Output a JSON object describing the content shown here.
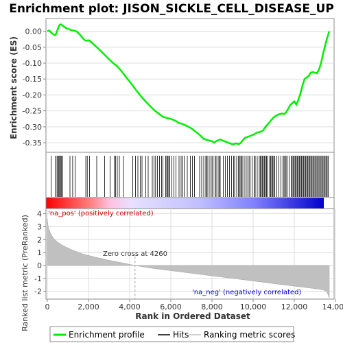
{
  "chart_data": [
    {
      "type": "line",
      "title": "Enrichment plot: JISON_SICKLE_CELL_DISEASE_UP",
      "ylabel": "Enrichment score (ES)",
      "ylim": [
        -0.38,
        0.04
      ],
      "yticks": [
        0.0,
        -0.05,
        -0.1,
        -0.15,
        -0.2,
        -0.25,
        -0.3,
        -0.35
      ],
      "ytick_labels": [
        "0.00",
        "-0.05",
        "-0.10",
        "-0.15",
        "-0.20",
        "-0.25",
        "-0.30",
        "-0.35"
      ],
      "xlim": [
        0,
        13700
      ],
      "grid": true,
      "color": "#00ee00",
      "series": [
        {
          "name": "Enrichment profile",
          "x": [
            0,
            100,
            200,
            300,
            400,
            500,
            550,
            600,
            650,
            700,
            800,
            900,
            1000,
            1100,
            1200,
            1300,
            1400,
            1500,
            1600,
            1700,
            1800,
            1900,
            2000,
            2100,
            2200,
            2400,
            2600,
            2800,
            3000,
            3200,
            3400,
            3600,
            3800,
            4000,
            4200,
            4400,
            4600,
            4800,
            5000,
            5200,
            5400,
            5600,
            5800,
            6000,
            6200,
            6400,
            6600,
            6800,
            7000,
            7200,
            7400,
            7600,
            7800,
            8000,
            8100,
            8200,
            8400,
            8600,
            8800,
            9000,
            9200,
            9300,
            9400,
            9500,
            9600,
            9800,
            10000,
            10200,
            10400,
            10500,
            10600,
            10800,
            11000,
            11200,
            11400,
            11500,
            11600,
            11800,
            12000,
            12100,
            12200,
            12300,
            12400,
            12500,
            12600,
            12700,
            12800,
            12900,
            13000,
            13100,
            13200,
            13300,
            13400,
            13500,
            13600,
            13700
          ],
          "y": [
            0.0,
            0.002,
            -0.005,
            -0.01,
            -0.012,
            0.005,
            0.015,
            0.02,
            0.022,
            0.02,
            0.015,
            0.01,
            0.008,
            0.005,
            0.003,
            0.002,
            0.0,
            -0.005,
            -0.012,
            -0.02,
            -0.027,
            -0.03,
            -0.028,
            -0.032,
            -0.038,
            -0.05,
            -0.062,
            -0.075,
            -0.088,
            -0.1,
            -0.11,
            -0.125,
            -0.142,
            -0.158,
            -0.175,
            -0.192,
            -0.208,
            -0.222,
            -0.235,
            -0.248,
            -0.258,
            -0.268,
            -0.272,
            -0.275,
            -0.28,
            -0.288,
            -0.292,
            -0.298,
            -0.305,
            -0.315,
            -0.325,
            -0.338,
            -0.342,
            -0.345,
            -0.35,
            -0.345,
            -0.34,
            -0.345,
            -0.35,
            -0.355,
            -0.352,
            -0.355,
            -0.35,
            -0.342,
            -0.335,
            -0.33,
            -0.325,
            -0.318,
            -0.315,
            -0.31,
            -0.3,
            -0.285,
            -0.27,
            -0.262,
            -0.258,
            -0.26,
            -0.255,
            -0.232,
            -0.22,
            -0.23,
            -0.215,
            -0.195,
            -0.17,
            -0.15,
            -0.145,
            -0.14,
            -0.13,
            -0.128,
            -0.13,
            -0.132,
            -0.12,
            -0.1,
            -0.07,
            -0.045,
            -0.02,
            0.0
          ]
        }
      ]
    },
    {
      "type": "hits",
      "label": "Hits",
      "hits": [
        180,
        380,
        470,
        520,
        560,
        600,
        640,
        690,
        740,
        1100,
        1230,
        1350,
        1870,
        1940,
        2050,
        2400,
        2780,
        3050,
        3250,
        3320,
        3400,
        3500,
        3700,
        4150,
        4280,
        4400,
        4520,
        4600,
        4780,
        4900,
        5100,
        5180,
        5260,
        5350,
        5450,
        5550,
        5620,
        5750,
        5800,
        5850,
        5900,
        5950,
        6050,
        6150,
        6250,
        6400,
        6500,
        6580,
        6650,
        6800,
        6950,
        7050,
        7150,
        7400,
        7500,
        7600,
        7700,
        7750,
        7800,
        7900,
        8000,
        8050,
        8150,
        8200,
        8300,
        8350,
        8400,
        8550,
        8650,
        8750,
        8850,
        8950,
        9050,
        9100,
        9200,
        9280,
        9350,
        9400,
        9450,
        9500,
        9600,
        9700,
        9800,
        9850,
        9950,
        10050,
        10100,
        10200,
        10300,
        10350,
        10400,
        10450,
        10500,
        10550,
        10600,
        10650,
        10700,
        10800,
        10850,
        10900,
        10950,
        11000,
        11050,
        11150,
        11250,
        11350,
        11450,
        11500,
        11550,
        11600,
        11650,
        11750,
        11850,
        11900,
        11950,
        12000,
        12050,
        12100,
        12150,
        12200,
        12250,
        12300,
        12350,
        12400,
        12450,
        12500,
        12550,
        12600,
        12650,
        12700,
        12750,
        12800,
        12850,
        12900,
        12950,
        13000,
        13050,
        13100,
        13150,
        13200,
        13250,
        13300,
        13350,
        13400,
        13450,
        13500,
        13550,
        13600,
        13650
      ]
    },
    {
      "type": "area",
      "ylabel": "Ranked list metric (PreRanked)",
      "xlabel": "Rank in Ordered Dataset",
      "xlim": [
        0,
        13700
      ],
      "ylim": [
        -2.6,
        4.4
      ],
      "yticks": [
        4,
        3,
        2,
        1,
        0,
        -1,
        -2
      ],
      "ytick_labels": [
        "4",
        "3",
        "2",
        "1",
        "0",
        "-1",
        "-2"
      ],
      "xticks": [
        0,
        2000,
        4000,
        6000,
        8000,
        10000,
        12000,
        14000
      ],
      "xtick_labels": [
        "0",
        "2,000",
        "4,000",
        "6,000",
        "8,000",
        "10,000",
        "12,000",
        "14,000"
      ],
      "grid": true,
      "series": [
        {
          "name": "Ranking metric scores",
          "x": [
            0,
            50,
            150,
            300,
            500,
            800,
            1200,
            1700,
            2300,
            3000,
            3800,
            4260,
            5000,
            6000,
            7000,
            8000,
            9000,
            10000,
            11000,
            12000,
            12800,
            13300,
            13500,
            13600,
            13650,
            13700
          ],
          "y": [
            3.6,
            2.9,
            2.5,
            2.1,
            1.8,
            1.5,
            1.2,
            0.9,
            0.65,
            0.4,
            0.15,
            0.0,
            -0.2,
            -0.4,
            -0.6,
            -0.8,
            -1.0,
            -1.2,
            -1.4,
            -1.6,
            -1.75,
            -1.85,
            -1.95,
            -2.1,
            -2.3,
            -2.5
          ]
        }
      ]
    }
  ],
  "labels": {
    "pos": "'na_pos' (positively correlated)",
    "neg": "'na_neg' (negatively correlated)",
    "zero_cross": "Zero cross at 4260"
  },
  "legend": {
    "items": [
      {
        "label": "Enrichment profile",
        "color": "#00ee00"
      },
      {
        "label": "Hits",
        "color": "#000000"
      },
      {
        "label": "Ranking metric scores",
        "color": "#c0c0c0"
      }
    ]
  },
  "colors": {
    "es_line": "#00ee00",
    "hits": "#000000",
    "metric_fill": "#c0c0c0",
    "pos_label": "#cc0000",
    "neg_label": "#0000cc",
    "grid": "#dddddd"
  }
}
